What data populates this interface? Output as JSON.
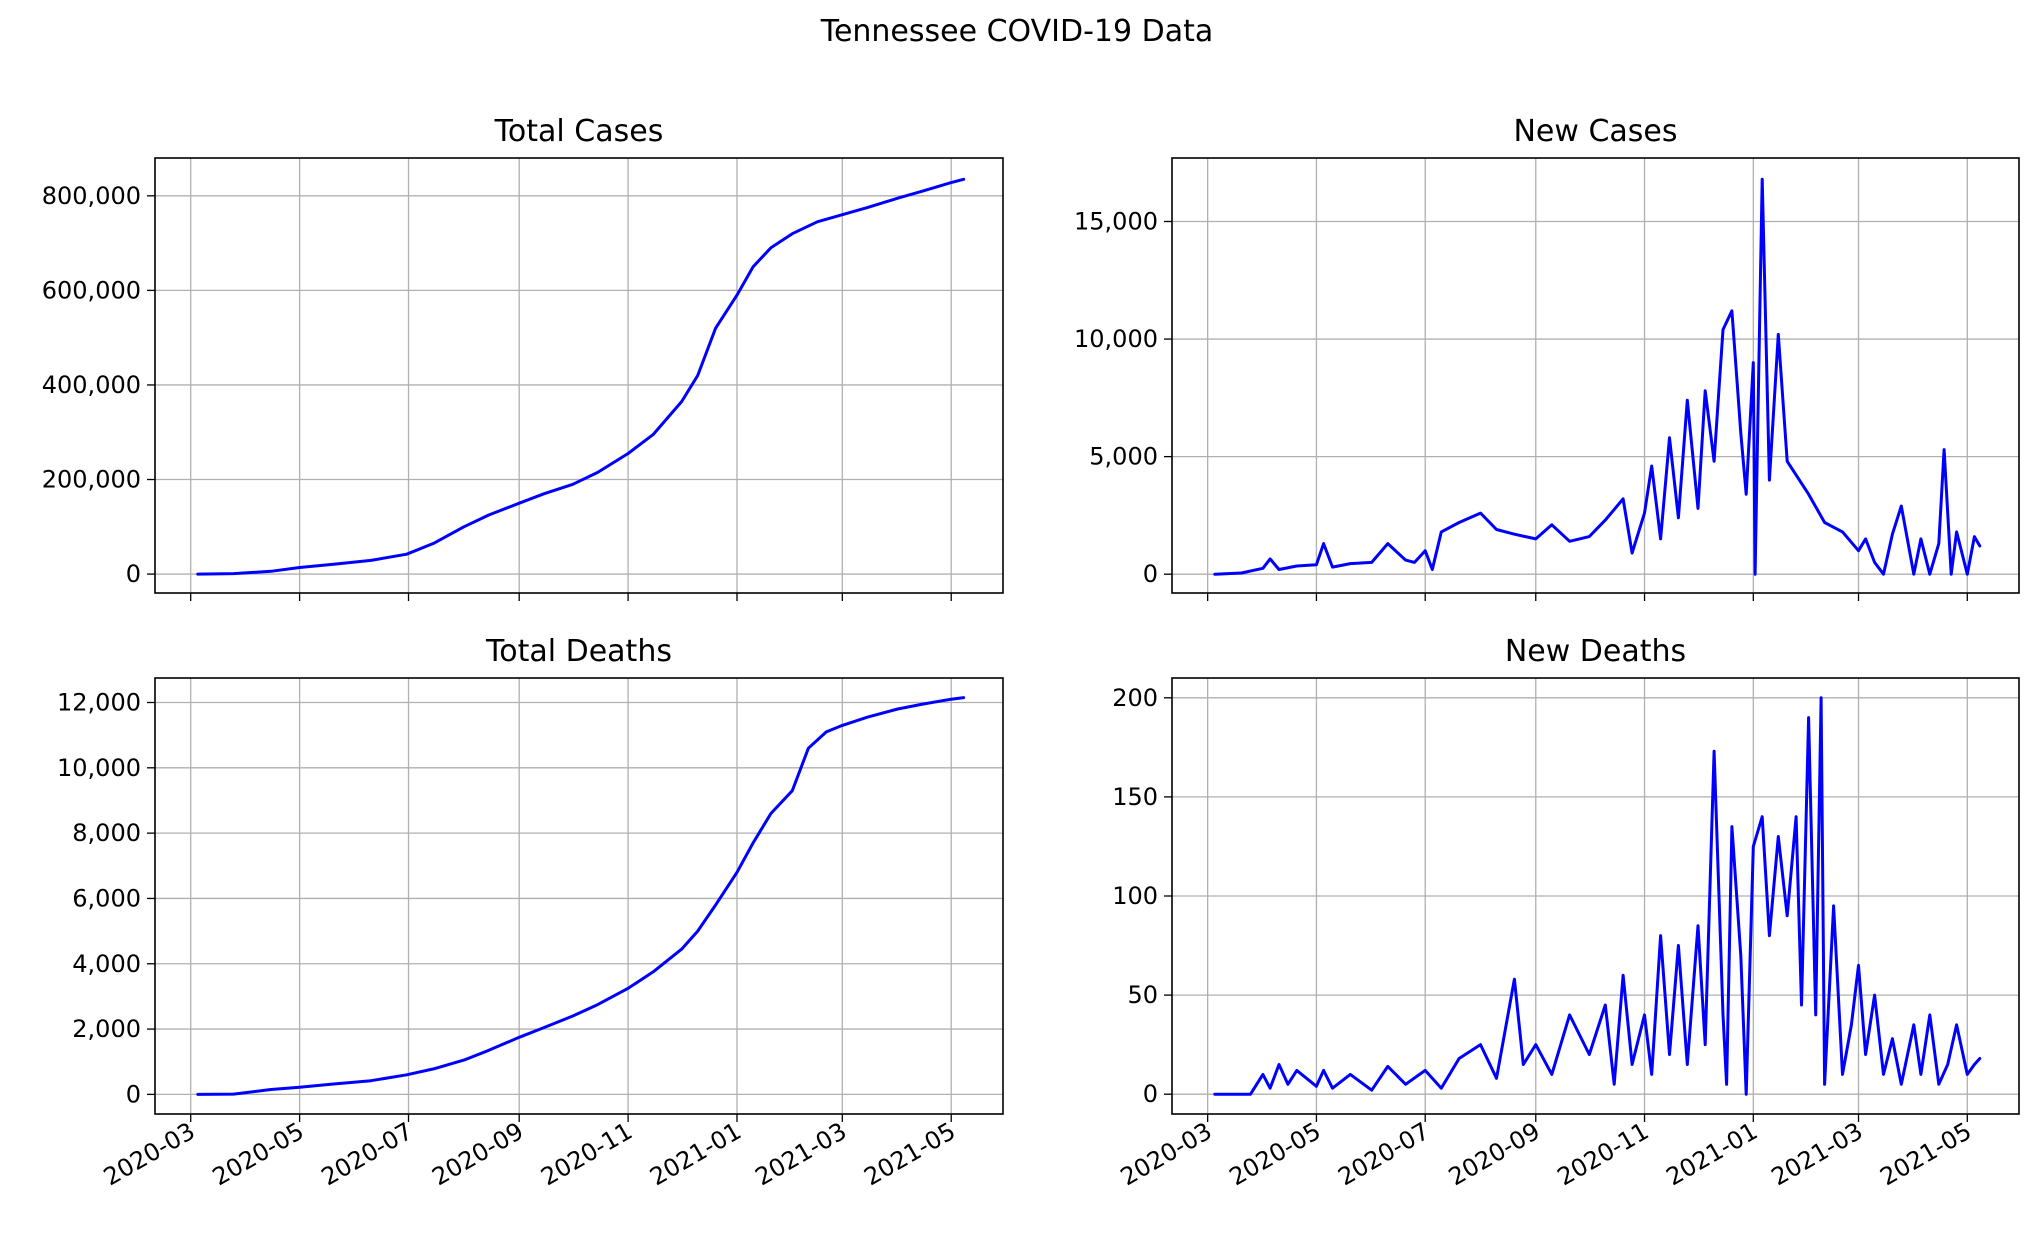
{
  "figure": {
    "title": "Tennessee COVID-19 Data",
    "line_color": "#0000ff",
    "grid_color": "#b0b0b0"
  },
  "chart_data": [
    {
      "type": "line",
      "title": "Total Cases",
      "xlabel": "",
      "ylabel": "",
      "x_ticks": [
        "2020-03",
        "2020-05",
        "2020-07",
        "2020-09",
        "2020-11",
        "2021-01",
        "2021-03",
        "2021-05"
      ],
      "x_tick_labels_shown": false,
      "y_ticks": [
        "0",
        "200,000",
        "400,000",
        "600,000",
        "800,000"
      ],
      "ylim": [
        -40000,
        880000
      ],
      "grid": true,
      "series": [
        {
          "x": [
            "2020-03-05",
            "2020-03-25",
            "2020-04-15",
            "2020-05-01",
            "2020-05-20",
            "2020-06-10",
            "2020-06-30",
            "2020-07-15",
            "2020-08-01",
            "2020-08-15",
            "2020-09-01",
            "2020-09-15",
            "2020-10-01",
            "2020-10-15",
            "2020-11-01",
            "2020-11-15",
            "2020-12-01",
            "2020-12-10",
            "2020-12-20",
            "2021-01-01",
            "2021-01-10",
            "2021-01-20",
            "2021-02-01",
            "2021-02-15",
            "2021-03-01",
            "2021-03-15",
            "2021-04-01",
            "2021-04-15",
            "2021-05-01",
            "2021-05-08"
          ],
          "values": [
            0,
            1000,
            6000,
            14000,
            21000,
            29000,
            42000,
            65000,
            100000,
            125000,
            150000,
            170000,
            190000,
            215000,
            255000,
            295000,
            365000,
            420000,
            520000,
            590000,
            650000,
            690000,
            720000,
            745000,
            760000,
            775000,
            795000,
            810000,
            828000,
            835000
          ]
        }
      ]
    },
    {
      "type": "line",
      "title": "New Cases",
      "xlabel": "",
      "ylabel": "",
      "x_ticks": [
        "2020-03",
        "2020-05",
        "2020-07",
        "2020-09",
        "2020-11",
        "2021-01",
        "2021-03",
        "2021-05"
      ],
      "x_tick_labels_shown": false,
      "y_ticks": [
        "0",
        "5,000",
        "10,000",
        "15,000"
      ],
      "ylim": [
        -800,
        17700
      ],
      "grid": true,
      "series": [
        {
          "x": [
            "2020-03-05",
            "2020-03-20",
            "2020-04-01",
            "2020-04-05",
            "2020-04-10",
            "2020-04-20",
            "2020-05-01",
            "2020-05-05",
            "2020-05-10",
            "2020-05-20",
            "2020-06-01",
            "2020-06-10",
            "2020-06-20",
            "2020-06-25",
            "2020-07-01",
            "2020-07-05",
            "2020-07-10",
            "2020-07-20",
            "2020-08-01",
            "2020-08-10",
            "2020-08-20",
            "2020-09-01",
            "2020-09-10",
            "2020-09-20",
            "2020-10-01",
            "2020-10-10",
            "2020-10-20",
            "2020-10-25",
            "2020-11-01",
            "2020-11-05",
            "2020-11-10",
            "2020-11-15",
            "2020-11-20",
            "2020-11-25",
            "2020-12-01",
            "2020-12-05",
            "2020-12-10",
            "2020-12-15",
            "2020-12-20",
            "2020-12-25",
            "2020-12-28",
            "2021-01-01",
            "2021-01-02",
            "2021-01-06",
            "2021-01-10",
            "2021-01-15",
            "2021-01-20",
            "2021-02-01",
            "2021-02-10",
            "2021-02-20",
            "2021-03-01",
            "2021-03-05",
            "2021-03-10",
            "2021-03-15",
            "2021-03-20",
            "2021-03-25",
            "2021-04-01",
            "2021-04-05",
            "2021-04-10",
            "2021-04-15",
            "2021-04-18",
            "2021-04-22",
            "2021-04-25",
            "2021-05-01",
            "2021-05-05",
            "2021-05-08"
          ],
          "values": [
            0,
            50,
            250,
            650,
            200,
            350,
            400,
            1300,
            300,
            450,
            500,
            1300,
            600,
            500,
            1000,
            200,
            1800,
            2200,
            2600,
            1900,
            1700,
            1500,
            2100,
            1400,
            1600,
            2300,
            3200,
            900,
            2600,
            4600,
            1500,
            5800,
            2400,
            7400,
            2800,
            7800,
            4800,
            10400,
            11200,
            6000,
            3400,
            9000,
            0,
            16800,
            4000,
            10200,
            4800,
            3400,
            2200,
            1800,
            1000,
            1500,
            500,
            0,
            1700,
            2900,
            0,
            1500,
            0,
            1300,
            5300,
            0,
            1800,
            0,
            1600,
            1200
          ]
        }
      ]
    },
    {
      "type": "line",
      "title": "Total Deaths",
      "xlabel": "",
      "ylabel": "",
      "x_ticks": [
        "2020-03",
        "2020-05",
        "2020-07",
        "2020-09",
        "2020-11",
        "2021-01",
        "2021-03",
        "2021-05"
      ],
      "x_tick_labels_shown": true,
      "y_ticks": [
        "0",
        "2,000",
        "4,000",
        "6,000",
        "8,000",
        "10,000",
        "12,000"
      ],
      "ylim": [
        -600,
        12750
      ],
      "grid": true,
      "series": [
        {
          "x": [
            "2020-03-05",
            "2020-03-25",
            "2020-04-15",
            "2020-05-01",
            "2020-05-20",
            "2020-06-10",
            "2020-06-30",
            "2020-07-15",
            "2020-08-01",
            "2020-08-15",
            "2020-09-01",
            "2020-09-15",
            "2020-10-01",
            "2020-10-15",
            "2020-11-01",
            "2020-11-15",
            "2020-12-01",
            "2020-12-10",
            "2020-12-20",
            "2021-01-01",
            "2021-01-10",
            "2021-01-20",
            "2021-02-01",
            "2021-02-10",
            "2021-02-20",
            "2021-03-01",
            "2021-03-15",
            "2021-04-01",
            "2021-04-15",
            "2021-05-01",
            "2021-05-08"
          ],
          "values": [
            0,
            10,
            150,
            220,
            320,
            420,
            600,
            780,
            1050,
            1350,
            1750,
            2050,
            2400,
            2750,
            3250,
            3750,
            4450,
            5000,
            5800,
            6800,
            7700,
            8600,
            9300,
            10600,
            11100,
            11300,
            11550,
            11800,
            11950,
            12100,
            12150
          ]
        }
      ]
    },
    {
      "type": "line",
      "title": "New Deaths",
      "xlabel": "",
      "ylabel": "",
      "x_ticks": [
        "2020-03",
        "2020-05",
        "2020-07",
        "2020-09",
        "2020-11",
        "2021-01",
        "2021-03",
        "2021-05"
      ],
      "x_tick_labels_shown": true,
      "y_ticks": [
        "0",
        "50",
        "100",
        "150",
        "200"
      ],
      "ylim": [
        -10,
        210
      ],
      "grid": true,
      "series": [
        {
          "x": [
            "2020-03-05",
            "2020-03-25",
            "2020-04-01",
            "2020-04-05",
            "2020-04-10",
            "2020-04-15",
            "2020-04-20",
            "2020-05-01",
            "2020-05-05",
            "2020-05-10",
            "2020-05-20",
            "2020-06-01",
            "2020-06-10",
            "2020-06-20",
            "2020-07-01",
            "2020-07-10",
            "2020-07-20",
            "2020-08-01",
            "2020-08-10",
            "2020-08-20",
            "2020-08-25",
            "2020-09-01",
            "2020-09-10",
            "2020-09-20",
            "2020-10-01",
            "2020-10-10",
            "2020-10-15",
            "2020-10-20",
            "2020-10-25",
            "2020-11-01",
            "2020-11-05",
            "2020-11-10",
            "2020-11-15",
            "2020-11-20",
            "2020-11-25",
            "2020-12-01",
            "2020-12-05",
            "2020-12-10",
            "2020-12-15",
            "2020-12-17",
            "2020-12-20",
            "2020-12-25",
            "2020-12-28",
            "2021-01-01",
            "2021-01-06",
            "2021-01-10",
            "2021-01-15",
            "2021-01-20",
            "2021-01-25",
            "2021-01-28",
            "2021-02-01",
            "2021-02-05",
            "2021-02-08",
            "2021-02-10",
            "2021-02-15",
            "2021-02-20",
            "2021-02-25",
            "2021-03-01",
            "2021-03-05",
            "2021-03-10",
            "2021-03-15",
            "2021-03-20",
            "2021-03-25",
            "2021-04-01",
            "2021-04-05",
            "2021-04-10",
            "2021-04-15",
            "2021-04-20",
            "2021-04-25",
            "2021-05-01",
            "2021-05-05",
            "2021-05-08"
          ],
          "values": [
            0,
            0,
            10,
            3,
            15,
            5,
            12,
            4,
            12,
            3,
            10,
            2,
            14,
            5,
            12,
            3,
            18,
            25,
            8,
            58,
            15,
            25,
            10,
            40,
            20,
            45,
            5,
            60,
            15,
            40,
            10,
            80,
            20,
            75,
            15,
            85,
            25,
            173,
            40,
            5,
            135,
            70,
            0,
            125,
            140,
            80,
            130,
            90,
            140,
            45,
            190,
            40,
            200,
            5,
            95,
            10,
            35,
            65,
            20,
            50,
            10,
            28,
            5,
            35,
            10,
            40,
            5,
            15,
            35,
            10,
            15,
            18
          ]
        }
      ]
    }
  ]
}
